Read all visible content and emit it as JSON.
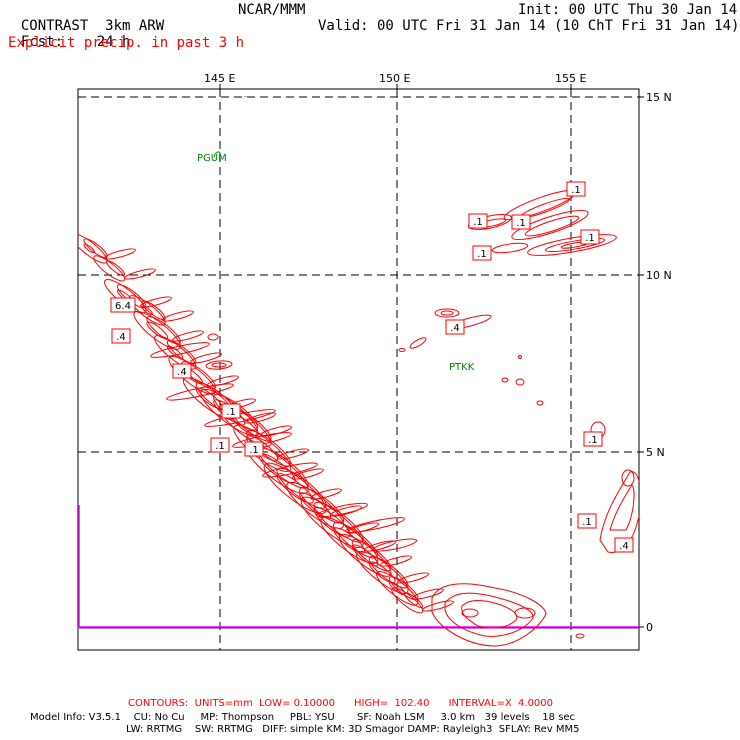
{
  "header": {
    "model": "CONTRAST",
    "model_desc": "3km ARW",
    "center": "NCAR/MMM",
    "init": "Init: 00 UTC Thu 30 Jan 14",
    "fcst_label": "Fcst:",
    "fcst_value": "24 h",
    "valid": "Valid: 00 UTC Fri 31 Jan 14 (10 ChT Fri 31 Jan 14)",
    "field": "Explicit precip. in past 3 h"
  },
  "axes": {
    "lon_labels": [
      "145 E",
      "150 E",
      "155 E"
    ],
    "lat_labels": [
      "15 N",
      "10 N",
      "5 N",
      "0"
    ]
  },
  "stations": [
    {
      "name": "PGUM"
    },
    {
      "name": "PTKK"
    }
  ],
  "contour_labels": [
    ".1",
    ".1",
    ".1",
    ".1",
    ".1",
    "6.4",
    ".4",
    ".4",
    ".4",
    ".1",
    ".1",
    ".1",
    ".1",
    ".1",
    ".4"
  ],
  "footer": {
    "contours": "CONTOURS:  UNITS=mm  LOW= 0.10000      HIGH=  102.40      INTERVAL=X  4.0000",
    "model_info": "Model Info: V3.5.1    CU: No Cu     MP: Thompson     PBL: YSU       SF: Noah LSM     3.0 km   39 levels    18 sec",
    "model_info2": "LW: RRTMG    SW: RRTMG   DIFF: simple KM: 3D Smagor DAMP: Rayleigh3  SFLAY: Rev MM5"
  },
  "colors": {
    "contour": "#ff0000",
    "station": "#008800",
    "boundary": "#ff00ff",
    "footer_title": "#ff0000"
  }
}
